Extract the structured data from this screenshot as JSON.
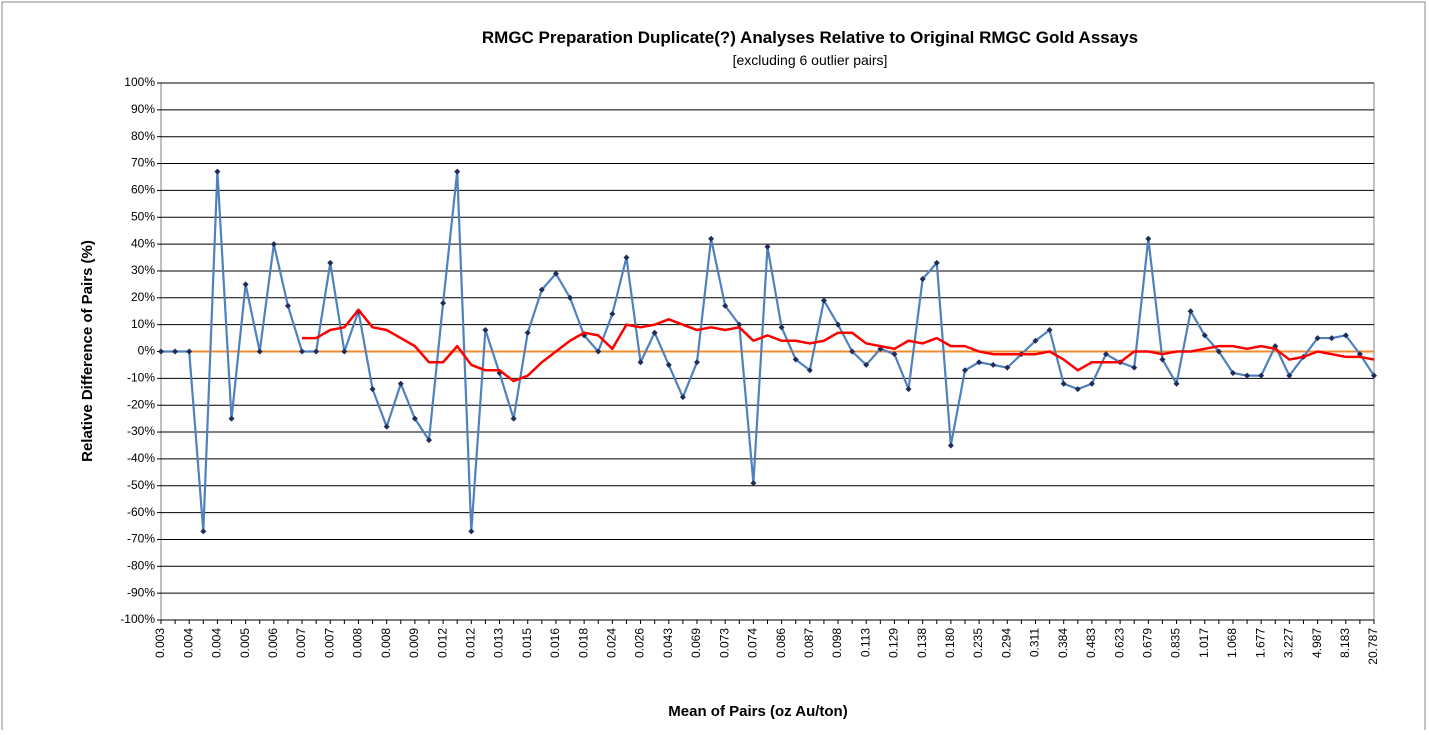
{
  "chart_data": {
    "type": "line",
    "title": "RMGC Preparation Duplicate(?) Analyses Relative to Original RMGC Gold Assays",
    "subtitle": "[excluding 6 outlier pairs]",
    "x_label": "Mean of Pairs (oz Au/ton)",
    "y_label": "Relative Difference of Pairs (%)",
    "categories": [
      "0.003",
      null,
      "0.004",
      null,
      "0.004",
      null,
      "0.005",
      null,
      "0.006",
      null,
      "0.007",
      null,
      "0.007",
      null,
      "0.008",
      null,
      "0.008",
      null,
      "0.009",
      null,
      "0.012",
      null,
      "0.012",
      null,
      "0.013",
      null,
      "0.015",
      null,
      "0.016",
      null,
      "0.018",
      null,
      "0.024",
      null,
      "0.026",
      null,
      "0.043",
      null,
      "0.069",
      null,
      "0.073",
      null,
      "0.074",
      null,
      "0.086",
      null,
      "0.087",
      null,
      "0.098",
      null,
      "0.113",
      null,
      "0.129",
      null,
      "0.138",
      null,
      "0.180",
      null,
      "0.235",
      null,
      "0.294",
      null,
      "0.311",
      null,
      "0.384",
      null,
      "0.483",
      null,
      "0.623",
      null,
      "0.679",
      null,
      "0.835",
      null,
      "1.017",
      null,
      "1.068",
      null,
      "1.677",
      null,
      "3.227",
      null,
      "4.987",
      null,
      "8.183",
      null,
      "20.787"
    ],
    "series": [
      {
        "color": "#4f81bd",
        "marker_color": "#1f2d5a",
        "markers": true,
        "values": [
          0,
          0,
          0,
          -67,
          67,
          -25,
          25,
          0,
          40,
          17,
          0,
          0,
          33,
          0,
          15,
          -14,
          -28,
          -12,
          -25,
          -33,
          18,
          67,
          -67,
          8,
          -8,
          -25,
          7,
          23,
          29,
          20,
          6,
          0,
          14,
          35,
          -4,
          7,
          -5,
          -17,
          -4,
          42,
          17,
          10,
          -49,
          39,
          9,
          -3,
          -7,
          19,
          10,
          0,
          -5,
          1,
          -1,
          -14,
          27,
          33,
          -35,
          -7,
          -4,
          -5,
          -6,
          -1,
          4,
          8,
          -12,
          -14,
          -12,
          -1,
          -4,
          -6,
          42,
          -3,
          -12,
          15,
          6,
          0,
          -8,
          -9,
          -9,
          2,
          -9,
          -2,
          5,
          5,
          6,
          -1,
          -9
        ]
      },
      {
        "color": "#ff0000",
        "markers": false,
        "values": [
          null,
          null,
          null,
          null,
          null,
          null,
          null,
          null,
          null,
          null,
          5,
          5,
          8,
          9,
          15.5,
          9,
          8,
          5,
          2,
          -4,
          -4,
          2,
          -5,
          -7,
          -7,
          -11,
          -9,
          -4,
          0,
          4,
          7,
          6,
          1,
          10,
          9,
          10,
          12,
          10,
          8,
          9,
          8,
          9,
          4,
          6,
          4,
          4,
          3,
          4,
          7,
          7,
          3,
          2,
          1,
          4,
          3,
          5,
          2,
          2,
          0,
          -1,
          -1,
          -1,
          -1,
          0,
          -3,
          -7,
          -4,
          -4,
          -4,
          0,
          0,
          -1,
          0,
          0,
          1,
          2,
          2,
          1,
          2,
          1,
          -3,
          -2,
          0,
          -1,
          -2,
          -2,
          -3
        ]
      }
    ],
    "reference_line": {
      "value": 0,
      "color": "#f08c30"
    },
    "ylim": [
      -100,
      100
    ],
    "yticks": [
      {
        "value": -100,
        "label": "-100%"
      },
      {
        "value": -90,
        "label": "-90%"
      },
      {
        "value": -80,
        "label": "-80%"
      },
      {
        "value": -70,
        "label": "-70%"
      },
      {
        "value": -60,
        "label": "-60%"
      },
      {
        "value": -50,
        "label": "-50%"
      },
      {
        "value": -40,
        "label": "-40%"
      },
      {
        "value": -30,
        "label": "-30%"
      },
      {
        "value": -20,
        "label": "-20%"
      },
      {
        "value": -10,
        "label": "-10%"
      },
      {
        "value": 0,
        "label": "0%"
      },
      {
        "value": 10,
        "label": "10%"
      },
      {
        "value": 20,
        "label": "20%"
      },
      {
        "value": 30,
        "label": "30%"
      },
      {
        "value": 40,
        "label": "40%"
      },
      {
        "value": 50,
        "label": "50%"
      },
      {
        "value": 60,
        "label": "60%"
      },
      {
        "value": 70,
        "label": "70%"
      },
      {
        "value": 80,
        "label": "80%"
      },
      {
        "value": 90,
        "label": "90%"
      },
      {
        "value": 100,
        "label": "100%"
      }
    ],
    "grid": true
  }
}
